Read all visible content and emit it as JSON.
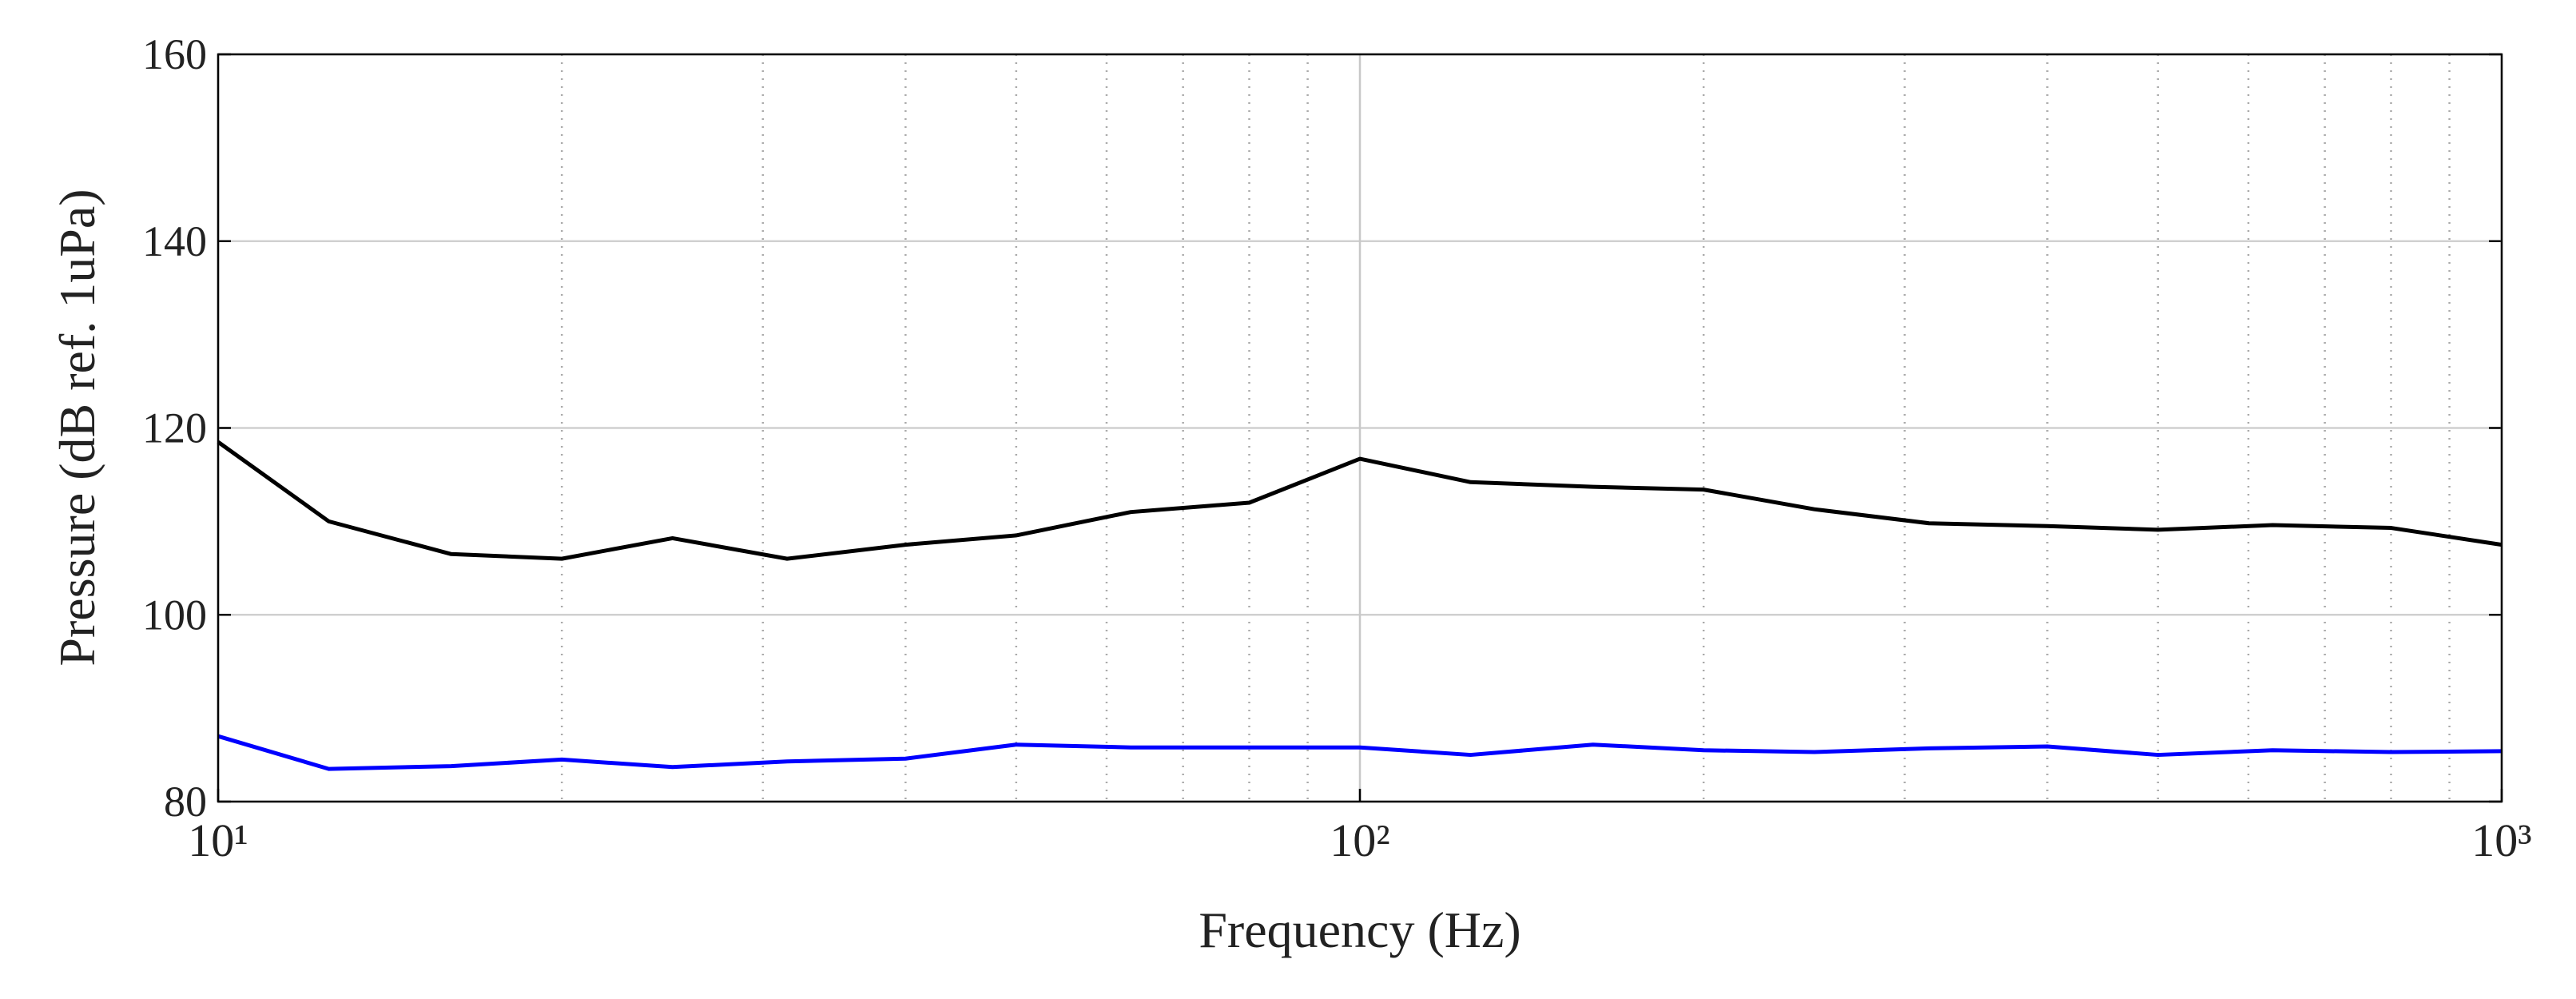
{
  "chart_data": {
    "type": "line",
    "xlabel": "Frequency (Hz)",
    "ylabel": "Pressure (dB ref. 1uPa)",
    "xscale": "log",
    "grid": true,
    "minor_grid": true,
    "x": [
      10,
      12.5,
      16,
      20,
      25,
      31.5,
      40,
      50,
      63,
      80,
      100,
      125,
      160,
      200,
      250,
      315,
      400,
      500,
      630,
      800,
      1000
    ],
    "series": [
      {
        "color": "#000000",
        "values": [
          118.5,
          110,
          106.5,
          106,
          108.2,
          106,
          107.5,
          108.5,
          111,
          112,
          116.7,
          114.2,
          113.7,
          113.4,
          111.3,
          109.8,
          109.5,
          109.1,
          109.6,
          109.3,
          107.5
        ]
      },
      {
        "color": "#0000ff",
        "values": [
          87,
          83.5,
          83.8,
          84.5,
          83.7,
          84.3,
          84.6,
          86.1,
          85.8,
          85.8,
          85.8,
          85,
          86.1,
          85.5,
          85.3,
          85.7,
          85.9,
          85,
          85.5,
          85.3,
          85.4
        ]
      }
    ],
    "xlim": [
      10,
      1000
    ],
    "xticks": [
      {
        "value": 10,
        "label": "10¹"
      },
      {
        "value": 100,
        "label": "10²"
      },
      {
        "value": 1000,
        "label": "10³"
      }
    ],
    "xminorticks": [
      20,
      30,
      40,
      50,
      60,
      70,
      80,
      90,
      200,
      300,
      400,
      500,
      600,
      700,
      800,
      900
    ],
    "ylim": [
      80,
      160
    ],
    "yticks": [
      80,
      100,
      120,
      140,
      160
    ]
  }
}
